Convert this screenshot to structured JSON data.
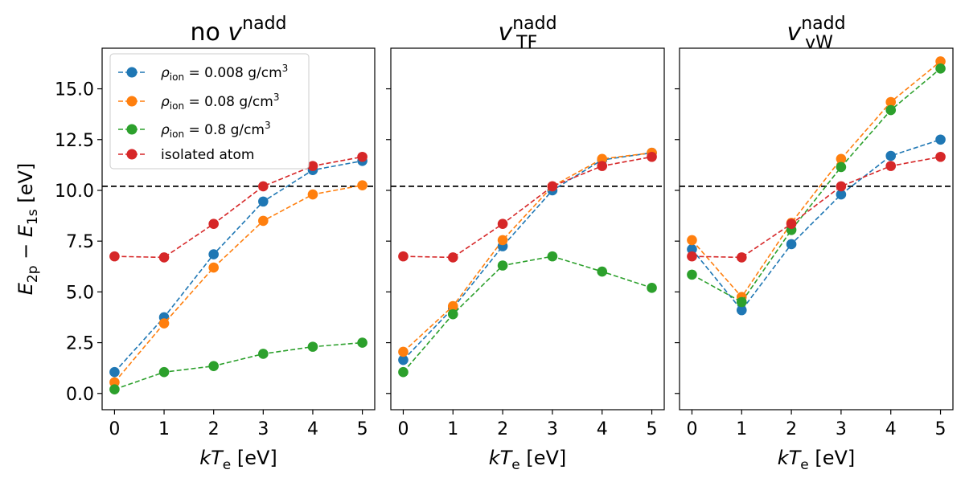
{
  "chart_data": [
    {
      "type": "line",
      "title": {
        "base": "no v",
        "sup": "nadd",
        "sub": ""
      },
      "xlabel": "kTe [eV]",
      "ylabel": "E2p − E1s [eV]",
      "x": [
        0,
        1,
        2,
        3,
        4,
        5
      ],
      "xticks": [
        "0",
        "1",
        "2",
        "3",
        "4",
        "5"
      ],
      "yticks": [
        "0.0",
        "2.5",
        "5.0",
        "7.5",
        "10.0",
        "12.5",
        "15.0"
      ],
      "xlim": [
        -0.25,
        5.25
      ],
      "ylim": [
        -0.8,
        17.0
      ],
      "reference_line": 10.2,
      "series": [
        {
          "name": "ρion = 0.008 g/cm3",
          "color": "#1f77b4",
          "values": [
            1.05,
            3.75,
            6.85,
            9.45,
            11.0,
            11.45
          ]
        },
        {
          "name": "ρion = 0.08 g/cm3",
          "color": "#ff7f0e",
          "values": [
            0.55,
            3.45,
            6.2,
            8.5,
            9.8,
            10.25
          ]
        },
        {
          "name": "ρion = 0.8 g/cm3",
          "color": "#2ca02c",
          "values": [
            0.2,
            1.05,
            1.35,
            1.95,
            2.3,
            2.5
          ]
        },
        {
          "name": "isolated atom",
          "color": "#d62728",
          "values": [
            6.75,
            6.7,
            8.35,
            10.2,
            11.2,
            11.65
          ]
        }
      ]
    },
    {
      "type": "line",
      "title": {
        "base": "v",
        "sup": "nadd",
        "sub": "TF"
      },
      "xlabel": "kTe [eV]",
      "x": [
        0,
        1,
        2,
        3,
        4,
        5
      ],
      "xticks": [
        "0",
        "1",
        "2",
        "3",
        "4",
        "5"
      ],
      "xlim": [
        -0.25,
        5.25
      ],
      "ylim": [
        -0.8,
        17.0
      ],
      "reference_line": 10.2,
      "series": [
        {
          "name": "ρion = 0.008 g/cm3",
          "color": "#1f77b4",
          "values": [
            1.65,
            4.2,
            7.25,
            10.0,
            11.5,
            11.85
          ]
        },
        {
          "name": "ρion = 0.08 g/cm3",
          "color": "#ff7f0e",
          "values": [
            2.05,
            4.3,
            7.55,
            10.2,
            11.55,
            11.85
          ]
        },
        {
          "name": "ρion = 0.8 g/cm3",
          "color": "#2ca02c",
          "values": [
            1.05,
            3.9,
            6.3,
            6.75,
            6.0,
            5.2
          ]
        },
        {
          "name": "isolated atom",
          "color": "#d62728",
          "values": [
            6.75,
            6.7,
            8.35,
            10.2,
            11.2,
            11.65
          ]
        }
      ]
    },
    {
      "type": "line",
      "title": {
        "base": "v",
        "sup": "nadd",
        "sub": "vW"
      },
      "xlabel": "kTe [eV]",
      "x": [
        0,
        1,
        2,
        3,
        4,
        5
      ],
      "xticks": [
        "0",
        "1",
        "2",
        "3",
        "4",
        "5"
      ],
      "xlim": [
        -0.25,
        5.25
      ],
      "ylim": [
        -0.8,
        17.0
      ],
      "reference_line": 10.2,
      "series": [
        {
          "name": "ρion = 0.008 g/cm3",
          "color": "#1f77b4",
          "values": [
            7.1,
            4.1,
            7.35,
            9.8,
            11.7,
            12.5
          ]
        },
        {
          "name": "ρion = 0.08 g/cm3",
          "color": "#ff7f0e",
          "values": [
            7.55,
            4.75,
            8.4,
            11.55,
            14.35,
            16.35
          ]
        },
        {
          "name": "ρion = 0.8 g/cm3",
          "color": "#2ca02c",
          "values": [
            5.85,
            4.5,
            8.05,
            11.15,
            13.95,
            16.0
          ]
        },
        {
          "name": "isolated atom",
          "color": "#d62728",
          "values": [
            6.75,
            6.7,
            8.35,
            10.2,
            11.2,
            11.65
          ]
        }
      ]
    }
  ],
  "legend": {
    "placement": "upper-left of first panel",
    "items": [
      {
        "pre": "ρ",
        "sub": "ion",
        "post": " = 0.008 g/cm",
        "sup": "3",
        "color": "#1f77b4"
      },
      {
        "pre": "ρ",
        "sub": "ion",
        "post": " = 0.08 g/cm",
        "sup": "3",
        "color": "#ff7f0e"
      },
      {
        "pre": "ρ",
        "sub": "ion",
        "post": " = 0.8 g/cm",
        "sup": "3",
        "color": "#2ca02c"
      },
      {
        "pre": "isolated atom",
        "sub": "",
        "post": "",
        "sup": "",
        "color": "#d62728"
      }
    ]
  },
  "labels": {
    "xlabel_k": "kT",
    "xlabel_sub": "e",
    "xlabel_unit": " [eV]",
    "ylabel_a": "E",
    "ylabel_a_sub": "2p",
    "ylabel_minus": " − ",
    "ylabel_b": "E",
    "ylabel_b_sub": "1s",
    "ylabel_unit": " [eV]"
  }
}
